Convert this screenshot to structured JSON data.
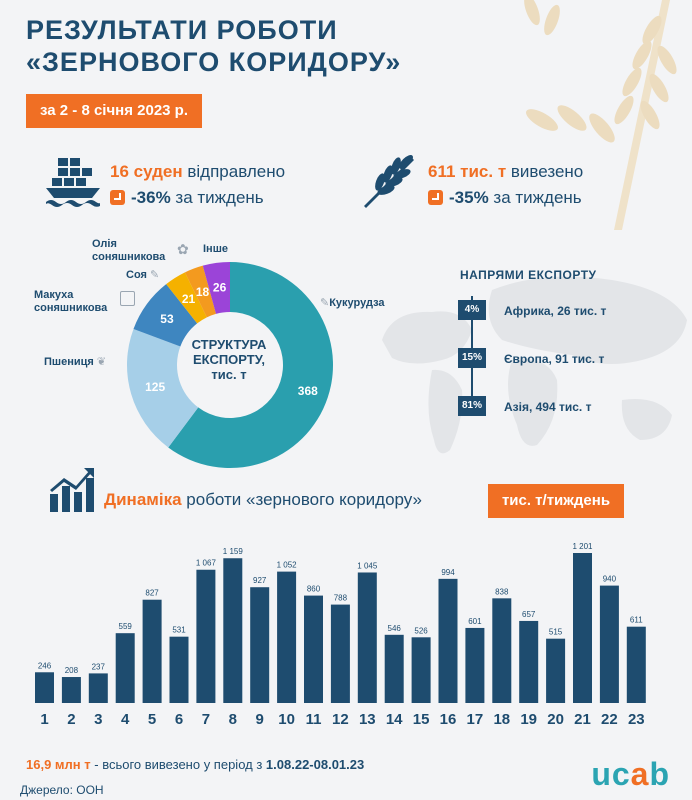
{
  "header": {
    "title_line1": "РЕЗУЛЬТАТИ РОБОТИ",
    "title_line2": "«ЗЕРНОВОГО КОРИДОРУ»",
    "date_badge": "за 2 - 8 січня 2023 р."
  },
  "stats": {
    "ships": {
      "value": "16 суден",
      "text": "відправлено",
      "change": "-36%",
      "change_text": "за тиждень"
    },
    "tonnes": {
      "value": "611 тис. т",
      "text": "вивезено",
      "change": "-35%",
      "change_text": "за тиждень"
    }
  },
  "structure": {
    "center_line1": "СТРУКТУРА",
    "center_line2": "ЕКСПОРТУ,",
    "center_line3": "тис. т",
    "labels": {
      "corn": "Кукурудза",
      "wheat": "Пшениця",
      "meal_line1": "Макуха",
      "meal_line2": "соняшникова",
      "soy": "Соя",
      "oil_line1": "Олія",
      "oil_line2": "соняшникова",
      "other": "Інше"
    }
  },
  "directions": {
    "title": "НАПРЯМИ ЕКСПОРТУ",
    "items": [
      {
        "pct": "4%",
        "label": "Африка, 26 тис. т"
      },
      {
        "pct": "15%",
        "label": "Європа, 91 тис. т"
      },
      {
        "pct": "81%",
        "label": "Азія, 494 тис. т"
      }
    ]
  },
  "dynamics": {
    "title_hi": "Динаміка",
    "title_rest": "роботи «зернового коридору»",
    "unit_badge": "тис. т/тиждень"
  },
  "footer": {
    "total_hi": "16,9 млн т",
    "total_mid": "- всього вивезено у період з",
    "total_period": "1.08.22-08.01.23",
    "source": "Джерело: ООН",
    "logo_a": "uc",
    "logo_b": "a",
    "logo_c": "b"
  },
  "colors": {
    "navy": "#1e4c6f",
    "orange": "#f06f24",
    "teal": "#2a9fae",
    "light_blue": "#a6cfe8",
    "mid_blue": "#3e86c0",
    "yellow": "#f5b100",
    "orange_seg": "#f39a1f",
    "purple": "#9b44d8"
  },
  "chart_data": [
    {
      "type": "pie",
      "title": "СТРУКТУРА ЕКСПОРТУ, тис. т",
      "slices": [
        {
          "name": "Кукурудза",
          "value": 368,
          "color": "#2a9fae"
        },
        {
          "name": "Пшениця",
          "value": 125,
          "color": "#a6cfe8"
        },
        {
          "name": "Макуха соняшникова",
          "value": 53,
          "color": "#3e86c0"
        },
        {
          "name": "Соя",
          "value": 21,
          "color": "#f5b100"
        },
        {
          "name": "Олія соняшникова",
          "value": 18,
          "color": "#f39a1f"
        },
        {
          "name": "Інше",
          "value": 26,
          "color": "#9b44d8"
        }
      ]
    },
    {
      "type": "bar",
      "title": "Динаміка роботи «зернового коридору»",
      "ylabel": "тис. т/тиждень",
      "categories": [
        "1",
        "2",
        "3",
        "4",
        "5",
        "6",
        "7",
        "8",
        "9",
        "10",
        "11",
        "12",
        "13",
        "14",
        "15",
        "16",
        "17",
        "18",
        "19",
        "20",
        "21",
        "22",
        "23"
      ],
      "values": [
        246,
        208,
        237,
        559,
        827,
        531,
        1067,
        1159,
        927,
        1052,
        860,
        788,
        1045,
        546,
        526,
        994,
        601,
        838,
        657,
        515,
        1201,
        940,
        611
      ],
      "value_labels": [
        "246",
        "208",
        "237",
        "559",
        "827",
        "531",
        "1 067",
        "1 159",
        "927",
        "1 052",
        "860",
        "788",
        "1 045",
        "546",
        "526",
        "994",
        "601",
        "838",
        "657",
        "515",
        "1 201",
        "940",
        "611"
      ],
      "ylim": [
        0,
        1201
      ]
    }
  ]
}
